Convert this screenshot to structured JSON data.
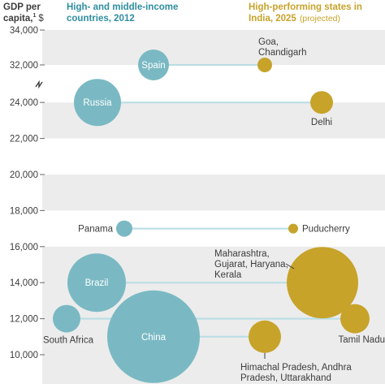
{
  "chart_data": {
    "type": "scatter",
    "ylabel_line1": "GDP per",
    "ylabel_line2": "capita,",
    "ylabel_footnote": "1",
    "ylabel_unit": "$",
    "y_ticks": [
      "34,000",
      "32,000",
      "24,000",
      "22,000",
      "20,000",
      "18,000",
      "16,000",
      "14,000",
      "12,000",
      "10,000"
    ],
    "y_break_between": [
      24000,
      32000
    ],
    "colors": {
      "countries": "#7ab9c3",
      "india": "#c7a32a",
      "connector": "#b7dde3",
      "band": "#ececec",
      "axis_text": "#3c3c3c"
    },
    "headers": {
      "countries_line1": "High- and middle-income",
      "countries_line2": "countries, 2012",
      "india_line1": "High-performing states in",
      "india_line2_main": "India, 2025",
      "india_line2_note": "(projected)"
    },
    "pairs": [
      {
        "country": "Spain",
        "country_label_inside": true,
        "country_y": 32000,
        "country_size": "medium",
        "state": "Goa, Chandigarh",
        "state_label_lines": [
          "Goa,",
          "Chandigarh"
        ],
        "state_y": 32000,
        "state_size": "small"
      },
      {
        "country": "Russia",
        "country_label_inside": true,
        "country_y": 24000,
        "country_size": "large",
        "state": "Delhi",
        "state_label_lines": [
          "Delhi"
        ],
        "state_y": 24000,
        "state_size": "medium"
      },
      {
        "country": "Panama",
        "country_label_inside": false,
        "country_y": 17000,
        "country_size": "small",
        "state": "Puducherry",
        "state_label_lines": [
          "Puducherry"
        ],
        "state_y": 17000,
        "state_size": "tiny"
      },
      {
        "country": "Brazil",
        "country_label_inside": true,
        "country_y": 14000,
        "country_size": "large",
        "state": "Maharashtra, Gujarat, Haryana, Kerala",
        "state_label_lines": [
          "Maharashtra,",
          "Gujarat, Haryana,",
          "Kerala"
        ],
        "state_y": 14000,
        "state_size": "very-large"
      },
      {
        "country": "South Africa",
        "country_label_inside": false,
        "country_y": 12000,
        "country_size": "medium",
        "state": "Tamil Nadu",
        "state_label_lines": [
          "Tamil Nadu"
        ],
        "state_y": 12000,
        "state_size": "medium"
      },
      {
        "country": "China",
        "country_label_inside": true,
        "country_y": 11000,
        "country_size": "huge",
        "state": "Himachal Pradesh, Andhra Pradesh, Uttarakhand",
        "state_label_lines": [
          "Himachal Pradesh, Andhra",
          "Pradesh, Uttarakhand"
        ],
        "state_y": 11000,
        "state_size": "medium"
      }
    ]
  }
}
